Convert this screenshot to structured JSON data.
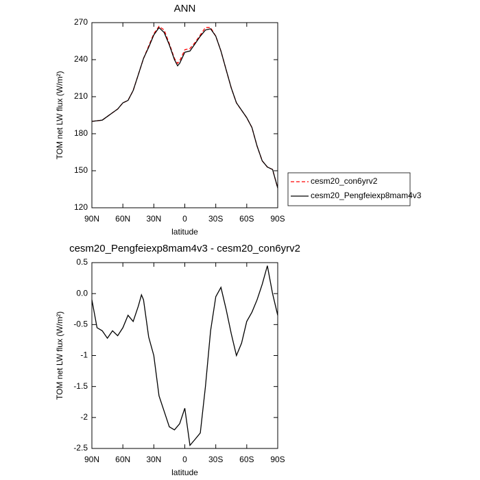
{
  "chart_data": [
    {
      "type": "line",
      "title": "ANN",
      "ylabel": "TOM net LW flux (W/m²)",
      "xlabel": "latitude",
      "x": [
        90,
        85,
        80,
        75,
        70,
        65,
        60,
        55,
        50,
        45,
        40,
        35,
        30,
        25,
        20,
        15,
        10,
        7,
        5,
        0,
        -5,
        -10,
        -15,
        -20,
        -25,
        -30,
        -35,
        -40,
        -45,
        -50,
        -55,
        -60,
        -65,
        -70,
        -75,
        -80,
        -85,
        -90
      ],
      "series": [
        {
          "name": "cesm20_con6yrv2",
          "color": "#ff0000",
          "dash": true,
          "values": [
            190,
            190.5,
            191,
            194,
            197,
            200,
            205,
            207,
            215,
            228,
            241,
            251,
            261,
            267,
            264,
            253,
            241,
            237,
            239,
            248,
            249,
            254,
            260,
            266,
            266,
            259,
            247,
            232,
            217,
            205,
            199,
            193,
            185,
            170,
            158,
            153,
            151,
            136
          ]
        },
        {
          "name": "cesm20_Pengfeiexp8mam4v3",
          "color": "#000000",
          "dash": false,
          "values": [
            190,
            190.5,
            191,
            194,
            197,
            200,
            205,
            207,
            215,
            228,
            241,
            250,
            260,
            266,
            262,
            252,
            240,
            235,
            237,
            246,
            247,
            253,
            259,
            264,
            265,
            259,
            247,
            232,
            217,
            205,
            199,
            193,
            185,
            170,
            158,
            153,
            151,
            136
          ]
        }
      ],
      "xlim": [
        90,
        -90
      ],
      "xticks": [
        {
          "value": 90,
          "label": "90N"
        },
        {
          "value": 60,
          "label": "60N"
        },
        {
          "value": 30,
          "label": "30N"
        },
        0,
        {
          "value": -30,
          "label": "30S"
        },
        {
          "value": -60,
          "label": "60S"
        },
        {
          "value": -90,
          "label": "90S"
        }
      ],
      "ylim": [
        120,
        270
      ],
      "yticks": [
        120,
        150,
        180,
        210,
        240,
        270
      ],
      "legend": "right"
    },
    {
      "type": "line",
      "title": "cesm20_Pengfeiexp8mam4v3 - cesm20_con6yrv2",
      "ylabel": "TOM net LW flux (W/m²)",
      "xlabel": "latitude",
      "x": [
        90,
        85,
        80,
        75,
        70,
        65,
        60,
        55,
        50,
        45,
        42,
        40,
        35,
        30,
        25,
        20,
        15,
        10,
        5,
        0,
        -5,
        -10,
        -15,
        -20,
        -25,
        -30,
        -35,
        -40,
        -45,
        -50,
        -55,
        -60,
        -65,
        -70,
        -75,
        -80,
        -85,
        -90
      ],
      "series": [
        {
          "name": null,
          "color": "#000000",
          "dash": false,
          "values": [
            -0.1,
            -0.55,
            -0.6,
            -0.72,
            -0.6,
            -0.68,
            -0.55,
            -0.35,
            -0.45,
            -0.2,
            -0.02,
            -0.1,
            -0.7,
            -1.0,
            -1.65,
            -1.9,
            -2.15,
            -2.2,
            -2.1,
            -1.85,
            -2.45,
            -2.35,
            -2.25,
            -1.5,
            -0.6,
            -0.05,
            0.1,
            -0.25,
            -0.65,
            -1.0,
            -0.8,
            -0.45,
            -0.3,
            -0.1,
            0.15,
            0.45,
            0.0,
            -0.35
          ]
        }
      ],
      "xlim": [
        90,
        -90
      ],
      "xticks": [
        {
          "value": 90,
          "label": "90N"
        },
        {
          "value": 60,
          "label": "60N"
        },
        {
          "value": 30,
          "label": "30N"
        },
        0,
        {
          "value": -30,
          "label": "30S"
        },
        {
          "value": -60,
          "label": "60S"
        },
        {
          "value": -90,
          "label": "90S"
        }
      ],
      "ylim": [
        -2.5,
        0.5
      ],
      "yticks": [
        -2.5,
        -2.0,
        -1.5,
        -1.0,
        -0.5,
        {
          "value": 0,
          "label": "0.0"
        },
        0.5
      ]
    }
  ]
}
